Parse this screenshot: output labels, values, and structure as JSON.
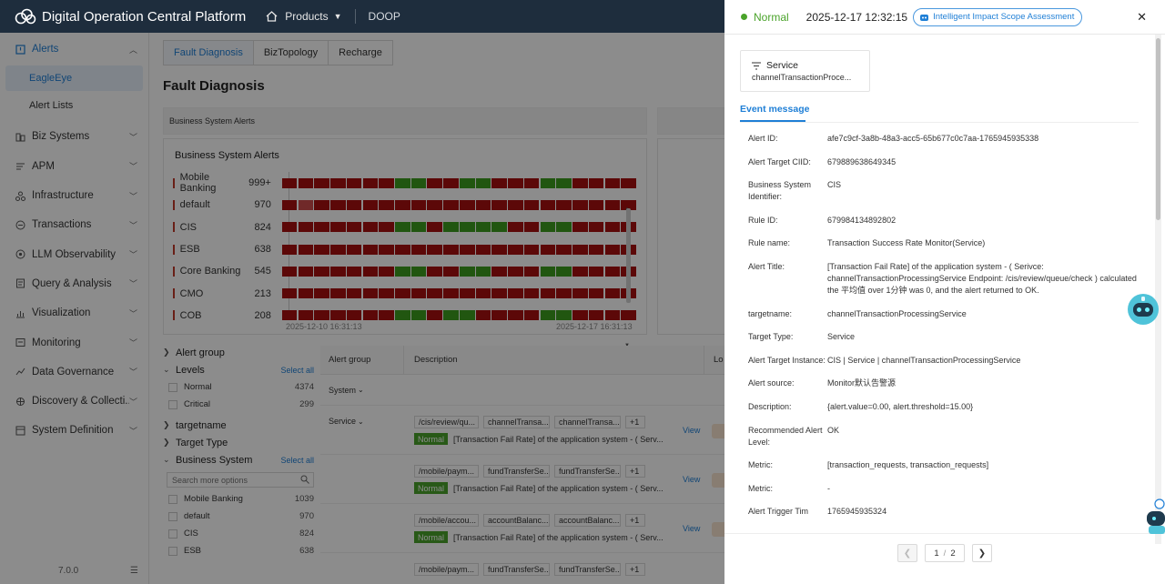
{
  "app": {
    "title": "Digital Operation Central Platform",
    "products_label": "Products",
    "workspace": "DOOP",
    "version": "7.0.0"
  },
  "sidebar": {
    "items": [
      {
        "label": "Alerts",
        "icon": "alert-icon",
        "expanded": true
      },
      {
        "label": "Biz Systems",
        "icon": "biz-systems-icon"
      },
      {
        "label": "APM",
        "icon": "apm-icon"
      },
      {
        "label": "Infrastructure",
        "icon": "infrastructure-icon"
      },
      {
        "label": "Transactions",
        "icon": "transactions-icon"
      },
      {
        "label": "LLM Observability",
        "icon": "llm-icon"
      },
      {
        "label": "Query & Analysis",
        "icon": "query-icon"
      },
      {
        "label": "Visualization",
        "icon": "visualization-icon"
      },
      {
        "label": "Monitoring",
        "icon": "monitoring-icon"
      },
      {
        "label": "Data Governance",
        "icon": "data-governance-icon"
      },
      {
        "label": "Discovery & Collecti...",
        "icon": "discovery-icon"
      },
      {
        "label": "System Definition",
        "icon": "system-definition-icon"
      }
    ],
    "alerts_children": [
      {
        "label": "EagleEye",
        "selected": true
      },
      {
        "label": "Alert Lists",
        "selected": false
      }
    ]
  },
  "main": {
    "tabs": [
      {
        "label": "Fault Diagnosis",
        "active": true
      },
      {
        "label": "BizTopology",
        "active": false
      },
      {
        "label": "Recharge",
        "active": false
      }
    ],
    "page_title": "Fault Diagnosis",
    "section_header": "Business System Alerts",
    "alert_card": {
      "title": "Business System Alerts",
      "rows": [
        {
          "name": "Mobile Banking",
          "count": "999+",
          "cells": "rrrrrrrggrrggrrrggrrrr"
        },
        {
          "name": "default",
          "count": "970",
          "cells": "rlrrrrrrrrrrrrrrrrrrrr"
        },
        {
          "name": "CIS",
          "count": "824",
          "cells": "rrrrrrrggrggggrrggrrrr"
        },
        {
          "name": "ESB",
          "count": "638",
          "cells": "rrrrrrrrrrrrrrrrrrrrrr"
        },
        {
          "name": "Core Banking",
          "count": "545",
          "cells": "rrrrrrrggrrggrrrggrrrr"
        },
        {
          "name": "CMO",
          "count": "213",
          "cells": "rrrrrrrrrrrrrrrrrrrrrr"
        },
        {
          "name": "COB",
          "count": "208",
          "cells": "rrrrrrrggrggrrrrggrrrr"
        }
      ],
      "date_start": "2025-12-10 16:31:13",
      "date_end": "2025-12-17 16:31:13"
    },
    "filters": {
      "groups": [
        {
          "label": "Alert group",
          "expanded": false
        },
        {
          "label": "Levels",
          "expanded": true,
          "select_all": "Select all",
          "options": [
            {
              "label": "Normal",
              "count": "4374"
            },
            {
              "label": "Critical",
              "count": "299"
            }
          ]
        },
        {
          "label": "targetname",
          "expanded": false
        },
        {
          "label": "Target Type",
          "expanded": false
        },
        {
          "label": "Business System",
          "expanded": true,
          "select_all": "Select all",
          "search_placeholder": "Search more options",
          "options": [
            {
              "label": "Mobile Banking",
              "count": "1039"
            },
            {
              "label": "default",
              "count": "970"
            },
            {
              "label": "CIS",
              "count": "824"
            },
            {
              "label": "ESB",
              "count": "638"
            }
          ]
        }
      ]
    },
    "table": {
      "columns": [
        "Alert group",
        "Description",
        "Lo"
      ],
      "group_rows": [
        {
          "label": "System"
        },
        {
          "label": "Service"
        }
      ],
      "rows": [
        {
          "tags": [
            "/cis/review/qu...",
            "channelTransa...",
            "channelTransa...",
            "+1"
          ],
          "badge": "Normal",
          "message": "[Transaction Fail Rate]  of the application system - ( Serv...",
          "action": "View"
        },
        {
          "tags": [
            "/mobile/paym...",
            "fundTransferSe...",
            "fundTransferSe...",
            "+1"
          ],
          "badge": "Normal",
          "message": "[Transaction Fail Rate]  of the application system - ( Serv...",
          "action": "View"
        },
        {
          "tags": [
            "/mobile/accou...",
            "accountBalanc...",
            "accountBalanc...",
            "+1"
          ],
          "badge": "Normal",
          "message": "[Transaction Fail Rate]  of the application system - ( Serv...",
          "action": "View"
        },
        {
          "tags": [
            "/mobile/paym...",
            "fundTransferSe...",
            "fundTransferSe...",
            "+1"
          ],
          "badge": "",
          "message": "",
          "action": ""
        }
      ]
    }
  },
  "drawer": {
    "status": "Normal",
    "status_color": "#4aa32a",
    "timestamp": "2025-12-17 12:32:15",
    "impact_button": "Intelligent Impact Scope Assessment",
    "service_card": {
      "title": "Service",
      "subtitle": "channelTransactionProce..."
    },
    "tab": "Event message",
    "fields": [
      {
        "key": "Alert ID:",
        "value": "afe7c9cf-3a8b-48a3-acc5-65b677c0c7aa-1765945935338"
      },
      {
        "key": "Alert Target CIID:",
        "value": "679889638649345"
      },
      {
        "key": "Business System Identifier:",
        "value": "CIS"
      },
      {
        "key": "Rule ID:",
        "value": "679984134892802"
      },
      {
        "key": "Rule name:",
        "value": "Transaction Success Rate Monitor(Service)"
      },
      {
        "key": "Alert Title:",
        "value": "[Transaction Fail Rate]  of the application system - ( Serivce: channelTransactionProcessingService Endpoint: /cis/review/queue/check ) calculated the 平均值 over 1分钟 was 0, and the alert returned to OK."
      },
      {
        "key": "targetname:",
        "value": "channelTransactionProcessingService"
      },
      {
        "key": "Target Type:",
        "value": "Service"
      },
      {
        "key": "Alert Target Instance:",
        "value": "CIS | Service | channelTransactionProcessingService"
      },
      {
        "key": "Alert source:",
        "value": "Monitor默认告警源"
      },
      {
        "key": "Description:",
        "value": "{alert.value=0.00, alert.threshold=15.00}"
      },
      {
        "key": "Recommended Alert Level:",
        "value": "OK"
      },
      {
        "key": "Metric:",
        "value": "[transaction_requests, transaction_requests]"
      },
      {
        "key": "Metric:",
        "value": "-"
      },
      {
        "key": "Alert Trigger Tim",
        "value": "1765945935324"
      }
    ],
    "pager": {
      "current": "1",
      "total": "2"
    }
  }
}
